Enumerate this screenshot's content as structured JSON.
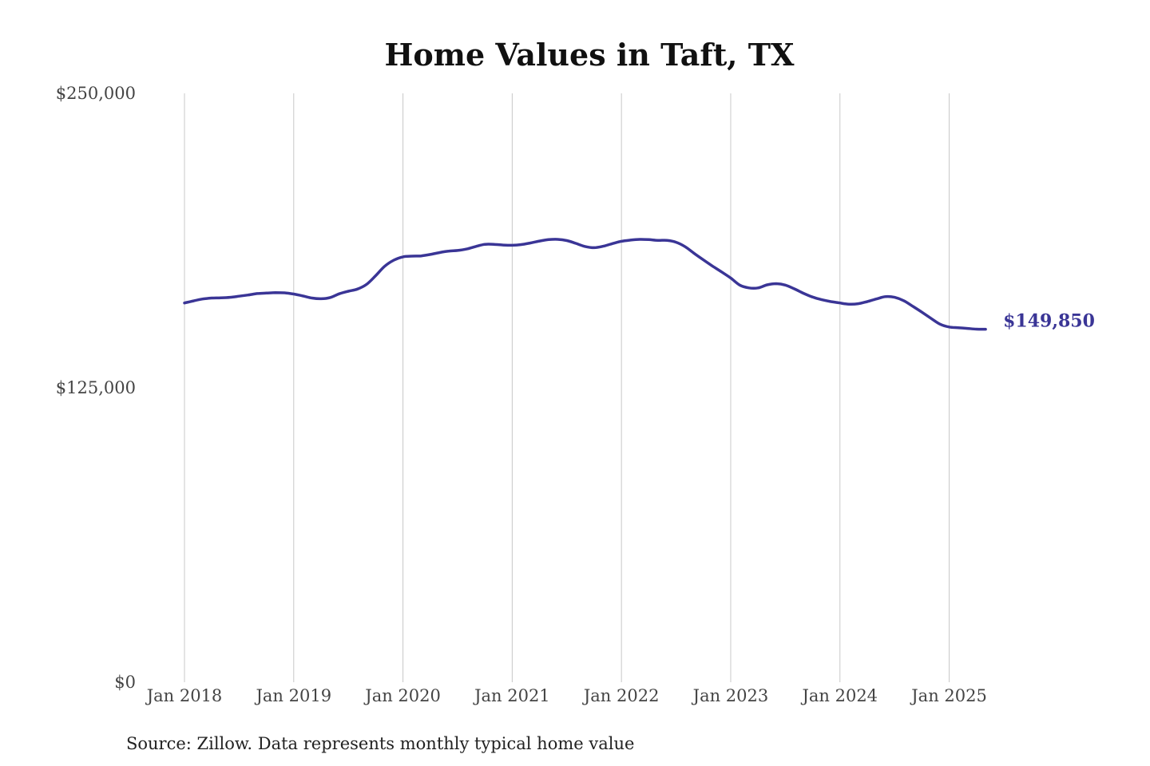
{
  "chart_data": {
    "type": "line",
    "title": "Home Values in Taft, TX",
    "xlabel": "",
    "ylabel": "",
    "ylim": [
      0,
      250000
    ],
    "y_ticks": [
      {
        "value": 250000,
        "label": "$250,000"
      },
      {
        "value": 125000,
        "label": "$125,000"
      },
      {
        "value": 0,
        "label": "$0"
      }
    ],
    "x_ticks": [
      {
        "value": 2018.0,
        "label": "Jan 2018"
      },
      {
        "value": 2019.0,
        "label": "Jan 2019"
      },
      {
        "value": 2020.0,
        "label": "Jan 2020"
      },
      {
        "value": 2021.0,
        "label": "Jan 2021"
      },
      {
        "value": 2022.0,
        "label": "Jan 2022"
      },
      {
        "value": 2023.0,
        "label": "Jan 2023"
      },
      {
        "value": 2024.0,
        "label": "Jan 2024"
      },
      {
        "value": 2025.0,
        "label": "Jan 2025"
      }
    ],
    "xlim": [
      2018.0,
      2025.42
    ],
    "grid": "vertical",
    "color": "#3a3596",
    "series": [
      {
        "end_label": "$149,850",
        "points": [
          [
            2018.0,
            161000
          ],
          [
            2018.083,
            161900
          ],
          [
            2018.167,
            162700
          ],
          [
            2018.25,
            163100
          ],
          [
            2018.333,
            163200
          ],
          [
            2018.417,
            163400
          ],
          [
            2018.5,
            163900
          ],
          [
            2018.583,
            164400
          ],
          [
            2018.667,
            165000
          ],
          [
            2018.75,
            165200
          ],
          [
            2018.833,
            165400
          ],
          [
            2018.917,
            165300
          ],
          [
            2019.0,
            164800
          ],
          [
            2019.083,
            164000
          ],
          [
            2019.167,
            163100
          ],
          [
            2019.25,
            162800
          ],
          [
            2019.333,
            163300
          ],
          [
            2019.417,
            164900
          ],
          [
            2019.5,
            166000
          ],
          [
            2019.583,
            166900
          ],
          [
            2019.667,
            168900
          ],
          [
            2019.75,
            172600
          ],
          [
            2019.833,
            176600
          ],
          [
            2019.917,
            179200
          ],
          [
            2020.0,
            180600
          ],
          [
            2020.083,
            180900
          ],
          [
            2020.167,
            181000
          ],
          [
            2020.25,
            181600
          ],
          [
            2020.333,
            182400
          ],
          [
            2020.417,
            183000
          ],
          [
            2020.5,
            183300
          ],
          [
            2020.583,
            183900
          ],
          [
            2020.667,
            185000
          ],
          [
            2020.75,
            185900
          ],
          [
            2020.833,
            185900
          ],
          [
            2020.917,
            185600
          ],
          [
            2021.0,
            185500
          ],
          [
            2021.083,
            185800
          ],
          [
            2021.167,
            186500
          ],
          [
            2021.25,
            187300
          ],
          [
            2021.333,
            187900
          ],
          [
            2021.417,
            188000
          ],
          [
            2021.5,
            187500
          ],
          [
            2021.583,
            186300
          ],
          [
            2021.667,
            185000
          ],
          [
            2021.75,
            184500
          ],
          [
            2021.833,
            185100
          ],
          [
            2021.917,
            186200
          ],
          [
            2022.0,
            187200
          ],
          [
            2022.083,
            187700
          ],
          [
            2022.167,
            188000
          ],
          [
            2022.25,
            187900
          ],
          [
            2022.333,
            187600
          ],
          [
            2022.417,
            187600
          ],
          [
            2022.5,
            186800
          ],
          [
            2022.583,
            184900
          ],
          [
            2022.667,
            182000
          ],
          [
            2022.75,
            179300
          ],
          [
            2022.833,
            176700
          ],
          [
            2022.917,
            174200
          ],
          [
            2023.0,
            171600
          ],
          [
            2023.083,
            168600
          ],
          [
            2023.167,
            167400
          ],
          [
            2023.25,
            167400
          ],
          [
            2023.333,
            168700
          ],
          [
            2023.417,
            169200
          ],
          [
            2023.5,
            168600
          ],
          [
            2023.583,
            167000
          ],
          [
            2023.667,
            165100
          ],
          [
            2023.75,
            163500
          ],
          [
            2023.833,
            162400
          ],
          [
            2023.917,
            161600
          ],
          [
            2024.0,
            161000
          ],
          [
            2024.083,
            160500
          ],
          [
            2024.167,
            160700
          ],
          [
            2024.25,
            161600
          ],
          [
            2024.333,
            162700
          ],
          [
            2024.417,
            163700
          ],
          [
            2024.5,
            163400
          ],
          [
            2024.583,
            162000
          ],
          [
            2024.667,
            159600
          ],
          [
            2024.75,
            157100
          ],
          [
            2024.833,
            154500
          ],
          [
            2024.917,
            152000
          ],
          [
            2025.0,
            150800
          ],
          [
            2025.083,
            150500
          ],
          [
            2025.167,
            150200
          ],
          [
            2025.25,
            149900
          ],
          [
            2025.333,
            149850
          ]
        ]
      }
    ],
    "source_note": "Source: Zillow. Data represents monthly typical home value"
  }
}
